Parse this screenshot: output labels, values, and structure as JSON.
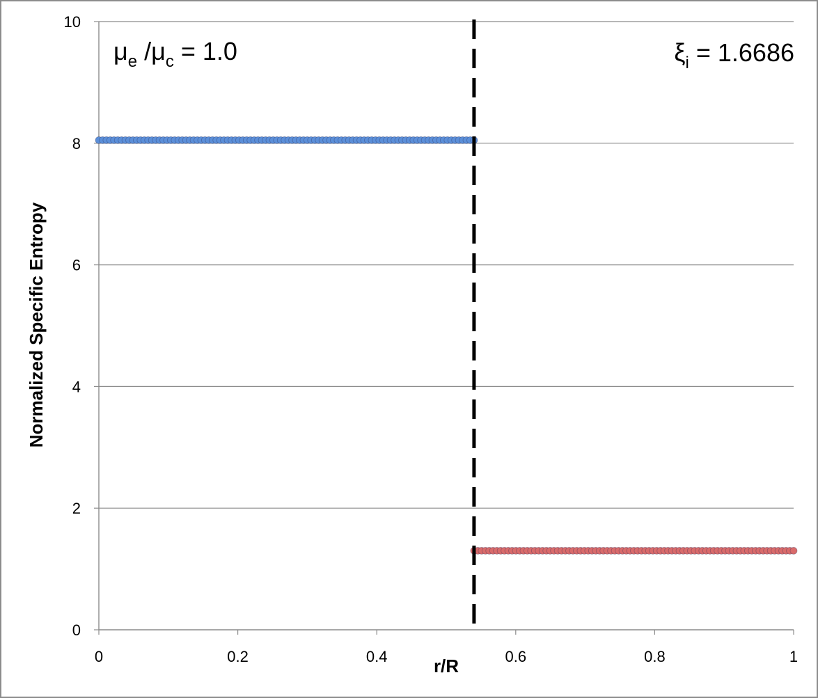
{
  "chart_data": {
    "type": "scatter",
    "xlabel": "r/R",
    "ylabel": "Normalized Specific Entropy",
    "xlim": [
      0,
      1
    ],
    "ylim": [
      0,
      10
    ],
    "x_ticks": [
      "0",
      "0.2",
      "0.4",
      "0.6",
      "0.8",
      "1"
    ],
    "y_ticks": [
      "0",
      "2",
      "4",
      "6",
      "8",
      "10"
    ],
    "grid": "horizontal",
    "series": [
      {
        "color": "#5b8fd9",
        "x_range": [
          0,
          0.54
        ],
        "y": 8.05,
        "n_points": 100
      },
      {
        "color": "#d96b6b",
        "x_range": [
          0.54,
          1.0
        ],
        "y": 1.3,
        "n_points": 85
      }
    ],
    "vertical_line": {
      "x": 0.54,
      "style": "dashed",
      "color": "#000000"
    },
    "annotations": {
      "left": {
        "mu": "μ",
        "sub_e": "e",
        "slash": " /",
        "mu2": "μ",
        "sub_c": "c",
        "rest": " = 1.0"
      },
      "right": {
        "xi": "ξ",
        "sub_i": "i",
        "rest": " = 1.6686"
      }
    }
  }
}
